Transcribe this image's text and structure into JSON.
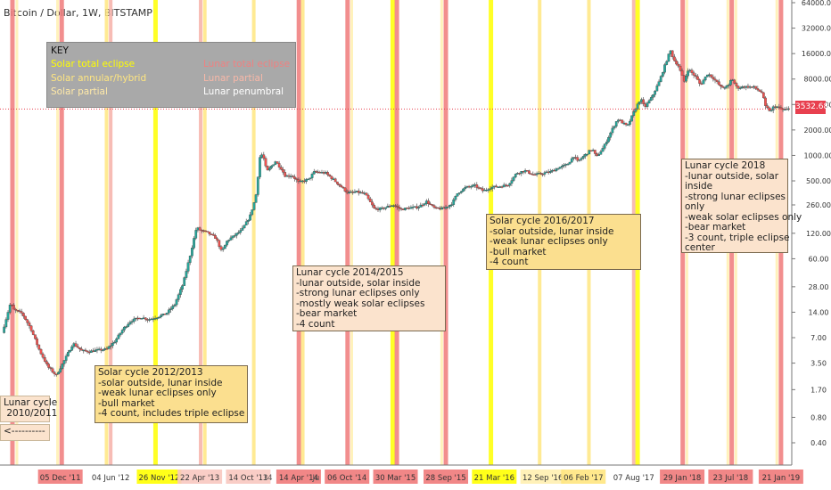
{
  "header": {
    "title": "Bitcoin / Dollar, 1W, BITSTAMP"
  },
  "key": {
    "title": "KEY",
    "solar_total": "Solar total eclipse",
    "solar_annular": "Solar annular/hybrid",
    "solar_partial": "Solar partial",
    "lunar_total": "Lunar total eclipse",
    "lunar_partial": "Lunar partial",
    "lunar_penumbral": "Lunar penumbral"
  },
  "colors": {
    "solar_total": "#ffff00",
    "solar_annular": "#ffe680",
    "solar_partial": "#fff0b0",
    "lunar_total": "#f07a7a",
    "lunar_partial": "#f6b0a8",
    "lunar_penumbral": "#ffffff",
    "candle_up": "#26a69a",
    "candle_down": "#ef5350",
    "price_line": "#e8404f"
  },
  "annotations": {
    "lunar_2010": "Lunar cycle\n 2010/2011",
    "arrow": "<----------",
    "solar_2012": "Solar cycle 2012/2013\n-solar outside, lunar inside\n-weak lunar eclipses only\n-bull market\n-4 count, includes triple eclipse",
    "lunar_2014": "Lunar cycle 2014/2015\n-lunar outside, solar inside\n-strong lunar eclipses only\n-mostly weak solar eclipses\n-bear market\n-4 count",
    "solar_2016": "Solar cycle 2016/2017\n-solar outside, lunar inside\n-weak lunar eclipses only\n-bull market\n-4 count",
    "lunar_2018": "Lunar cycle 2018\n-lunar outside, solar\ninside\n-strong lunar eclipses\nonly\n-weak solar eclipses only\n-bear market\n-3 count, triple eclipse\ncenter"
  },
  "chart_data": {
    "type": "candlestick",
    "title": "Bitcoin / Dollar, 1W, BITSTAMP",
    "y_scale": "log",
    "ylim": [
      0.25,
      64000
    ],
    "y_ticks": [
      "0.40",
      "0.80",
      "1.70",
      "3.50",
      "7.00",
      "14.00",
      "28.00",
      "60.00",
      "120.00",
      "260.00",
      "500.00",
      "1000.00",
      "2000.00",
      "4000.00",
      "8000.00",
      "16000.00",
      "32000.00",
      "64000.00"
    ],
    "last_price": "3532.68",
    "x_range": [
      "2011-05-01",
      "2019-03-01"
    ],
    "x_ticks": [
      {
        "label": "05 Dec '11",
        "date": "2011-12-05",
        "hl": "lunar_total"
      },
      {
        "label": "04 Jun '12",
        "date": "2012-06-04",
        "hl": "none"
      },
      {
        "label": "26 Nov '12",
        "date": "2012-11-26",
        "hl": "solar_total"
      },
      {
        "label": "22 Apr '13",
        "date": "2013-04-22",
        "hl": "lunar_partial"
      },
      {
        "label": "14 Oct '13",
        "date": "2013-10-14",
        "hl": "lunar_partial"
      },
      {
        "label": "14 Apr '14",
        "date": "2014-04-14",
        "hl": "lunar_total"
      },
      {
        "label": "06 Oct '14",
        "date": "2014-10-06",
        "hl": "lunar_total"
      },
      {
        "label": "30 Mar '15",
        "date": "2015-03-30",
        "hl": "lunar_total"
      },
      {
        "label": "28 Sep '15",
        "date": "2015-09-28",
        "hl": "lunar_total"
      },
      {
        "label": "21 Mar '16",
        "date": "2016-03-21",
        "hl": "solar_total"
      },
      {
        "label": "12 Sep '16",
        "date": "2016-09-12",
        "hl": "solar_partial"
      },
      {
        "label": "06 Feb '17",
        "date": "2017-02-06",
        "hl": "solar_annular"
      },
      {
        "label": "07 Aug '17",
        "date": "2017-08-07",
        "hl": "none"
      },
      {
        "label": "29 Jan '18",
        "date": "2018-01-29",
        "hl": "lunar_total"
      },
      {
        "label": "23 Jul '18",
        "date": "2018-07-23",
        "hl": "lunar_total"
      },
      {
        "label": "21 Jan '19",
        "date": "2019-01-21",
        "hl": "lunar_total"
      }
    ],
    "x_ticks_partial": [
      {
        "label": "Ju",
        "date": "2014-06-16"
      },
      {
        "label": "14",
        "date": "2013-12-23"
      }
    ],
    "eclipses": [
      {
        "date": "2011-06-15",
        "type": "lunar_total"
      },
      {
        "date": "2011-07-01",
        "type": "solar_partial"
      },
      {
        "date": "2011-11-25",
        "type": "solar_partial"
      },
      {
        "date": "2011-12-10",
        "type": "lunar_total"
      },
      {
        "date": "2012-05-20",
        "type": "solar_annular"
      },
      {
        "date": "2012-06-04",
        "type": "lunar_partial"
      },
      {
        "date": "2012-11-13",
        "type": "solar_total"
      },
      {
        "date": "2012-11-28",
        "type": "lunar_penumbral"
      },
      {
        "date": "2013-04-25",
        "type": "lunar_partial"
      },
      {
        "date": "2013-05-10",
        "type": "solar_annular"
      },
      {
        "date": "2013-05-25",
        "type": "lunar_penumbral"
      },
      {
        "date": "2013-10-18",
        "type": "lunar_penumbral"
      },
      {
        "date": "2013-11-03",
        "type": "solar_annular"
      },
      {
        "date": "2014-04-15",
        "type": "lunar_total"
      },
      {
        "date": "2014-04-29",
        "type": "solar_annular"
      },
      {
        "date": "2014-10-08",
        "type": "lunar_total"
      },
      {
        "date": "2014-10-23",
        "type": "solar_partial"
      },
      {
        "date": "2015-03-20",
        "type": "solar_total"
      },
      {
        "date": "2015-04-04",
        "type": "lunar_total"
      },
      {
        "date": "2015-09-13",
        "type": "solar_partial"
      },
      {
        "date": "2015-09-28",
        "type": "lunar_total"
      },
      {
        "date": "2016-03-09",
        "type": "solar_total"
      },
      {
        "date": "2016-03-23",
        "type": "lunar_penumbral"
      },
      {
        "date": "2016-08-18",
        "type": "lunar_penumbral"
      },
      {
        "date": "2016-09-01",
        "type": "solar_annular"
      },
      {
        "date": "2016-09-16",
        "type": "lunar_penumbral"
      },
      {
        "date": "2017-02-11",
        "type": "lunar_penumbral"
      },
      {
        "date": "2017-02-26",
        "type": "solar_annular"
      },
      {
        "date": "2017-08-07",
        "type": "lunar_partial"
      },
      {
        "date": "2017-08-21",
        "type": "solar_total"
      },
      {
        "date": "2018-01-31",
        "type": "lunar_total"
      },
      {
        "date": "2018-02-15",
        "type": "solar_partial"
      },
      {
        "date": "2018-07-13",
        "type": "solar_partial"
      },
      {
        "date": "2018-07-27",
        "type": "lunar_total"
      },
      {
        "date": "2018-08-11",
        "type": "solar_partial"
      },
      {
        "date": "2019-01-06",
        "type": "solar_partial"
      },
      {
        "date": "2019-01-21",
        "type": "lunar_total"
      }
    ],
    "price_path": [
      [
        "2011-05-09",
        8
      ],
      [
        "2011-06-08",
        18
      ],
      [
        "2011-06-20",
        15
      ],
      [
        "2011-07-20",
        13.5
      ],
      [
        "2011-08-20",
        9
      ],
      [
        "2011-09-20",
        5
      ],
      [
        "2011-10-20",
        3.2
      ],
      [
        "2011-11-20",
        2.5
      ],
      [
        "2011-12-20",
        3.8
      ],
      [
        "2012-01-20",
        6
      ],
      [
        "2012-02-20",
        4.9
      ],
      [
        "2012-03-20",
        4.8
      ],
      [
        "2012-04-20",
        5
      ],
      [
        "2012-05-20",
        5.1
      ],
      [
        "2012-06-20",
        6.4
      ],
      [
        "2012-07-20",
        9
      ],
      [
        "2012-08-15",
        11
      ],
      [
        "2012-09-20",
        12.2
      ],
      [
        "2012-10-20",
        11.5
      ],
      [
        "2012-11-20",
        12.3
      ],
      [
        "2012-12-20",
        13.4
      ],
      [
        "2013-01-20",
        17
      ],
      [
        "2013-02-20",
        30
      ],
      [
        "2013-03-20",
        70
      ],
      [
        "2013-04-10",
        140
      ],
      [
        "2013-04-25",
        130
      ],
      [
        "2013-05-20",
        122
      ],
      [
        "2013-06-20",
        105
      ],
      [
        "2013-07-10",
        72
      ],
      [
        "2013-07-30",
        98
      ],
      [
        "2013-08-20",
        110
      ],
      [
        "2013-09-20",
        130
      ],
      [
        "2013-10-20",
        190
      ],
      [
        "2013-11-10",
        320
      ],
      [
        "2013-11-25",
        950
      ],
      [
        "2013-12-05",
        1050
      ],
      [
        "2013-12-20",
        640
      ],
      [
        "2014-01-20",
        850
      ],
      [
        "2014-02-10",
        700
      ],
      [
        "2014-02-25",
        570
      ],
      [
        "2014-03-20",
        580
      ],
      [
        "2014-04-15",
        480
      ],
      [
        "2014-05-20",
        520
      ],
      [
        "2014-06-10",
        640
      ],
      [
        "2014-07-20",
        620
      ],
      [
        "2014-08-20",
        510
      ],
      [
        "2014-09-20",
        410
      ],
      [
        "2014-10-10",
        360
      ],
      [
        "2014-11-10",
        370
      ],
      [
        "2014-12-10",
        350
      ],
      [
        "2015-01-14",
        230
      ],
      [
        "2015-02-10",
        235
      ],
      [
        "2015-03-20",
        260
      ],
      [
        "2015-04-20",
        230
      ],
      [
        "2015-05-20",
        240
      ],
      [
        "2015-06-20",
        245
      ],
      [
        "2015-07-20",
        285
      ],
      [
        "2015-08-20",
        235
      ],
      [
        "2015-09-20",
        235
      ],
      [
        "2015-10-20",
        270
      ],
      [
        "2015-11-10",
        360
      ],
      [
        "2015-12-10",
        420
      ],
      [
        "2016-01-10",
        440
      ],
      [
        "2016-02-10",
        380
      ],
      [
        "2016-03-10",
        420
      ],
      [
        "2016-04-10",
        430
      ],
      [
        "2016-05-10",
        450
      ],
      [
        "2016-06-10",
        620
      ],
      [
        "2016-07-10",
        660
      ],
      [
        "2016-08-10",
        590
      ],
      [
        "2016-09-10",
        610
      ],
      [
        "2016-10-10",
        640
      ],
      [
        "2016-11-10",
        720
      ],
      [
        "2016-12-10",
        780
      ],
      [
        "2017-01-04",
        1000
      ],
      [
        "2017-01-15",
        840
      ],
      [
        "2017-02-10",
        1000
      ],
      [
        "2017-03-10",
        1200
      ],
      [
        "2017-03-25",
        950
      ],
      [
        "2017-04-20",
        1250
      ],
      [
        "2017-05-20",
        2000
      ],
      [
        "2017-06-10",
        2700
      ],
      [
        "2017-07-15",
        2200
      ],
      [
        "2017-08-10",
        3400
      ],
      [
        "2017-09-01",
        4700
      ],
      [
        "2017-09-15",
        3700
      ],
      [
        "2017-10-10",
        4800
      ],
      [
        "2017-11-05",
        7200
      ],
      [
        "2017-12-17",
        17500
      ],
      [
        "2017-12-30",
        13500
      ],
      [
        "2018-01-15",
        11500
      ],
      [
        "2018-02-05",
        7500
      ],
      [
        "2018-02-20",
        10500
      ],
      [
        "2018-03-20",
        8400
      ],
      [
        "2018-04-05",
        6800
      ],
      [
        "2018-05-01",
        9300
      ],
      [
        "2018-05-20",
        8300
      ],
      [
        "2018-06-20",
        6300
      ],
      [
        "2018-07-15",
        6600
      ],
      [
        "2018-07-27",
        8200
      ],
      [
        "2018-08-15",
        6300
      ],
      [
        "2018-09-15",
        6500
      ],
      [
        "2018-10-15",
        6400
      ],
      [
        "2018-11-14",
        5500
      ],
      [
        "2018-11-25",
        3800
      ],
      [
        "2018-12-15",
        3300
      ],
      [
        "2018-12-28",
        3900
      ],
      [
        "2019-01-15",
        3600
      ],
      [
        "2019-02-01",
        3450
      ],
      [
        "2019-02-18",
        3532.68
      ]
    ]
  }
}
